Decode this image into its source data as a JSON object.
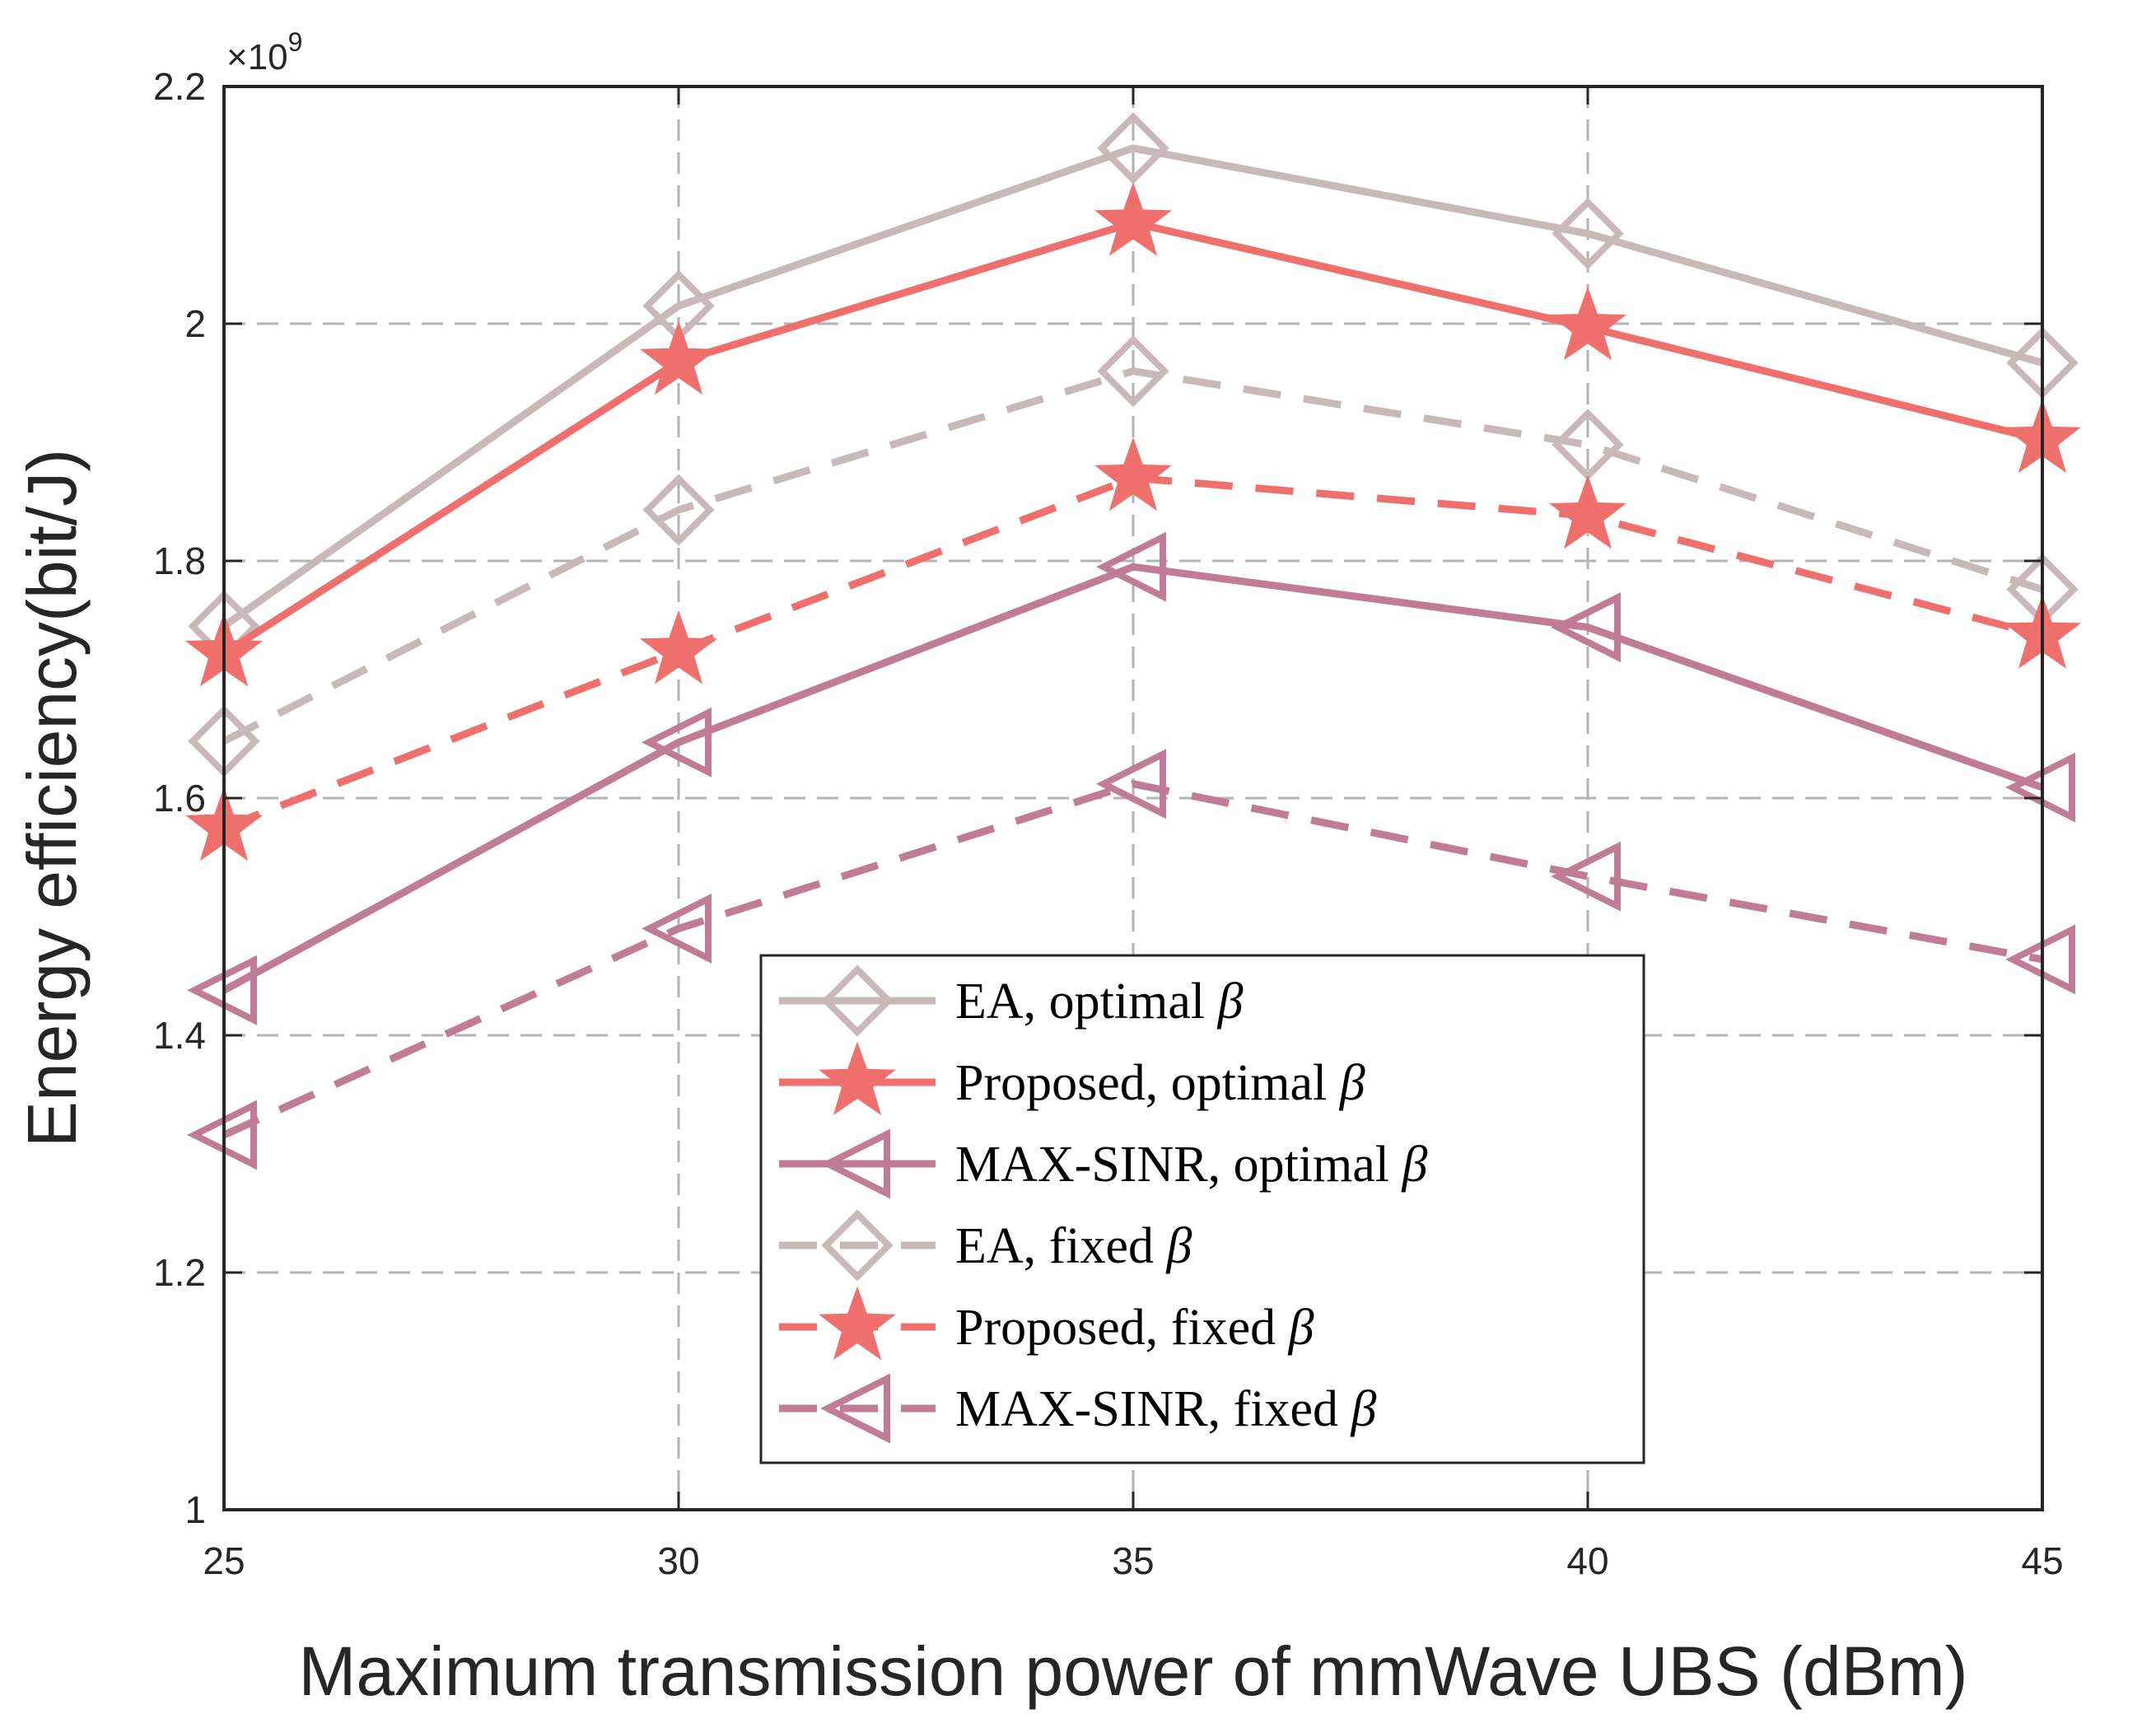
{
  "chart_data": {
    "type": "line",
    "title": "",
    "xlabel": "Maximum transmission power of mmWave UBS (dBm)",
    "ylabel": "Energy efficiency(bit/J)",
    "y_exponent_label": "×10",
    "y_exponent_power": "9",
    "x": [
      25,
      30,
      35,
      40,
      45
    ],
    "xlim": [
      25,
      45
    ],
    "ylim": [
      1,
      2.2
    ],
    "xticks": [
      "25",
      "30",
      "35",
      "40",
      "45"
    ],
    "yticks": [
      "1",
      "1.2",
      "1.4",
      "1.6",
      "1.8",
      "2",
      "2.2"
    ],
    "grid": true,
    "legend_position": "bottom-center",
    "series": [
      {
        "name": "EA, optimal",
        "symbol": "β",
        "values": [
          1.745,
          2.015,
          2.148,
          2.076,
          1.967
        ],
        "color": "#c9b8b8",
        "dashed": false,
        "marker": "diamond"
      },
      {
        "name": "Proposed, optimal",
        "symbol": "β",
        "values": [
          1.722,
          1.968,
          2.085,
          1.997,
          1.902
        ],
        "color": "#ef6f6c",
        "dashed": false,
        "marker": "star"
      },
      {
        "name": "MAX-SINR, optimal",
        "symbol": "β",
        "values": [
          1.438,
          1.647,
          1.795,
          1.744,
          1.609
        ],
        "color": "#c07c97",
        "dashed": false,
        "marker": "triangle-left"
      },
      {
        "name": "EA, fixed",
        "symbol": "β",
        "values": [
          1.648,
          1.843,
          1.96,
          1.898,
          1.776
        ],
        "color": "#c9b8b8",
        "dashed": true,
        "marker": "diamond"
      },
      {
        "name": "Proposed, fixed",
        "symbol": "β",
        "values": [
          1.575,
          1.724,
          1.87,
          1.838,
          1.737
        ],
        "color": "#ef6f6c",
        "dashed": true,
        "marker": "star"
      },
      {
        "name": "MAX-SINR, fixed",
        "symbol": "β",
        "values": [
          1.316,
          1.49,
          1.612,
          1.534,
          1.464
        ],
        "color": "#c07c97",
        "dashed": true,
        "marker": "triangle-left"
      }
    ]
  }
}
